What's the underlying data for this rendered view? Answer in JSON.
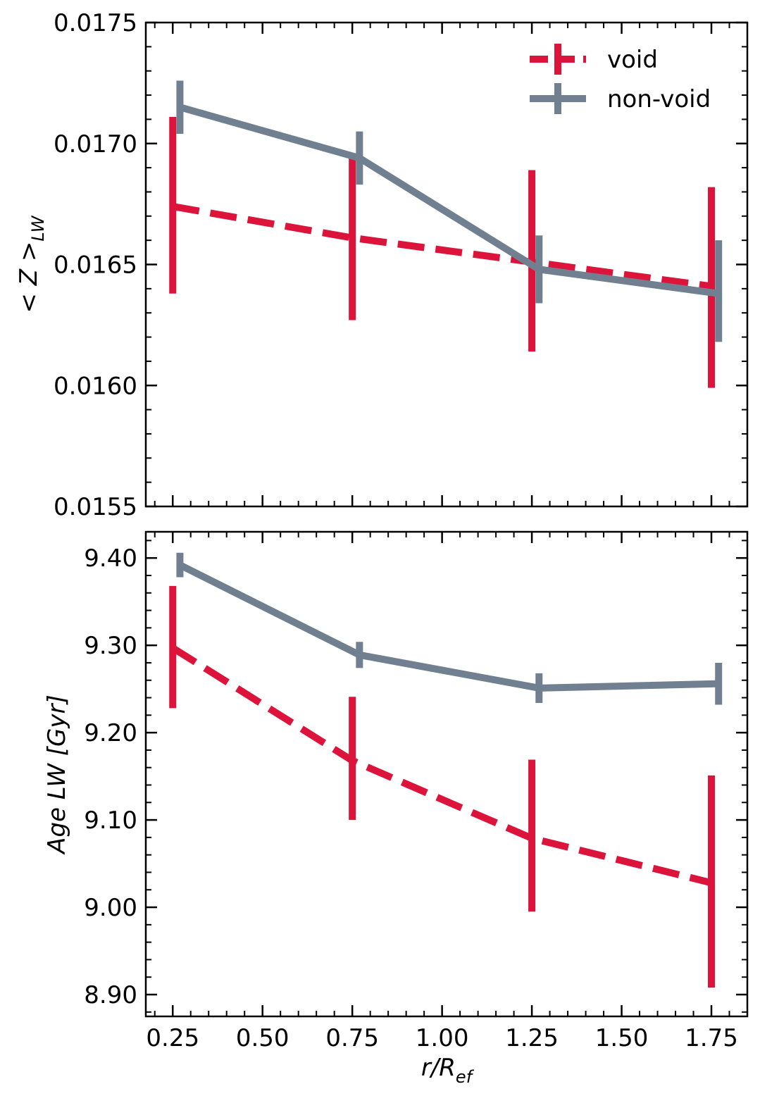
{
  "chart_data": [
    {
      "type": "line",
      "panel": "top",
      "title": "",
      "xlabel": "",
      "ylabel": "< Z >_LW",
      "ylabel_main": "< Z >",
      "ylabel_sub": "LW",
      "xlim": [
        0.175,
        1.85
      ],
      "ylim": [
        0.0155,
        0.0175
      ],
      "yticks": [
        0.0155,
        0.016,
        0.0165,
        0.017,
        0.0175
      ],
      "ytick_labels": [
        "0.0155",
        "0.0160",
        "0.0165",
        "0.0170",
        "0.0175"
      ],
      "legend_position": "top-right",
      "series": [
        {
          "name": "void",
          "color": "#dc143c",
          "style": "dashed",
          "x": [
            0.25,
            0.75,
            1.25,
            1.75
          ],
          "y": [
            0.01674,
            0.01661,
            0.01651,
            0.01641
          ],
          "err_low": [
            0.01638,
            0.01627,
            0.01614,
            0.01599
          ],
          "err_high": [
            0.01711,
            0.01696,
            0.01689,
            0.01682
          ]
        },
        {
          "name": "non-void",
          "color": "#708090",
          "style": "solid",
          "x": [
            0.27,
            0.77,
            1.27,
            1.77
          ],
          "y": [
            0.01715,
            0.01694,
            0.01648,
            0.01638
          ],
          "err_low": [
            0.01704,
            0.01683,
            0.01634,
            0.01618
          ],
          "err_high": [
            0.01726,
            0.01705,
            0.01662,
            0.0166
          ]
        }
      ]
    },
    {
      "type": "line",
      "panel": "bottom",
      "title": "",
      "xlabel": "r/R_ef",
      "xlabel_main": "r/R",
      "xlabel_sub": "ef",
      "ylabel": "Age LW [Gyr]",
      "xlim": [
        0.175,
        1.85
      ],
      "ylim": [
        8.875,
        9.43
      ],
      "xticks": [
        0.25,
        0.5,
        0.75,
        1.0,
        1.25,
        1.5,
        1.75
      ],
      "xtick_labels": [
        "0.25",
        "0.50",
        "0.75",
        "1.00",
        "1.25",
        "1.50",
        "1.75"
      ],
      "yticks": [
        8.9,
        9.0,
        9.1,
        9.2,
        9.3,
        9.4
      ],
      "ytick_labels": [
        "8.90",
        "9.00",
        "9.10",
        "9.20",
        "9.30",
        "9.40"
      ],
      "series": [
        {
          "name": "void",
          "color": "#dc143c",
          "style": "dashed",
          "x": [
            0.25,
            0.75,
            1.25,
            1.75
          ],
          "y": [
            9.297,
            9.168,
            9.079,
            9.028
          ],
          "err_low": [
            9.228,
            9.1,
            8.995,
            8.908
          ],
          "err_high": [
            9.368,
            9.241,
            9.169,
            9.151
          ]
        },
        {
          "name": "non-void",
          "color": "#708090",
          "style": "solid",
          "x": [
            0.27,
            0.77,
            1.27,
            1.77
          ],
          "y": [
            9.392,
            9.289,
            9.251,
            9.256
          ],
          "err_low": [
            9.378,
            9.274,
            9.234,
            9.232
          ],
          "err_high": [
            9.406,
            9.304,
            9.268,
            9.28
          ]
        }
      ]
    }
  ]
}
